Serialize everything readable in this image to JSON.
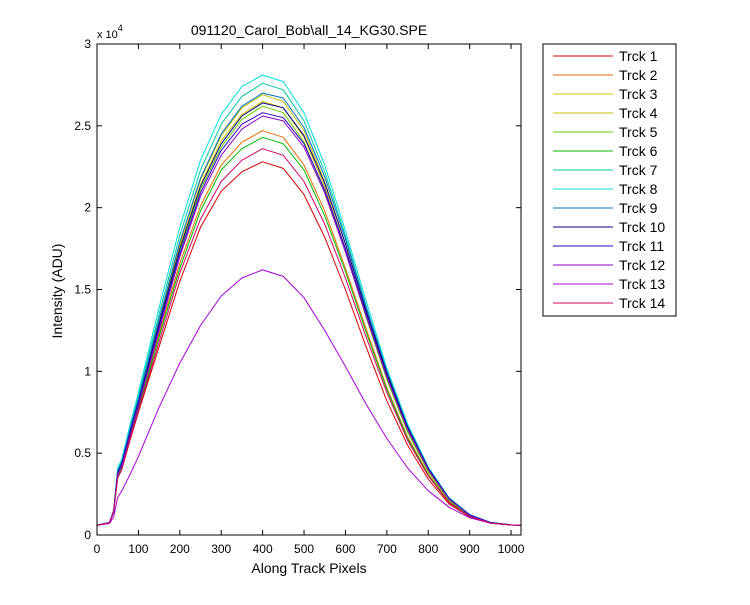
{
  "chart_data": {
    "type": "line",
    "title": "091120_Carol_Bob\\all_14_KG30.SPE",
    "xlabel": "Along Track Pixels",
    "ylabel": "Intensity (ADU)",
    "y_multiplier_label": "x 10",
    "y_multiplier_exponent": "4",
    "xlim": [
      0,
      1024
    ],
    "ylim": [
      0,
      30000
    ],
    "x_ticks": [
      0,
      100,
      200,
      300,
      400,
      500,
      600,
      700,
      800,
      900,
      1000
    ],
    "x_tick_labels": [
      "0",
      "100",
      "200",
      "300",
      "400",
      "500",
      "600",
      "700",
      "800",
      "900",
      "1000"
    ],
    "y_ticks": [
      0,
      5000,
      10000,
      15000,
      20000,
      25000,
      30000
    ],
    "y_tick_labels": [
      "0",
      "0.5",
      "1",
      "1.5",
      "2",
      "2.5",
      "3"
    ],
    "grid": false,
    "legend_position": "outside-top-right",
    "x": [
      0,
      30,
      40,
      50,
      60,
      80,
      100,
      150,
      200,
      250,
      300,
      350,
      400,
      450,
      500,
      550,
      600,
      650,
      700,
      750,
      800,
      850,
      900,
      950,
      1000,
      1024
    ],
    "series": [
      {
        "name": "Trck 1",
        "color": "#d40000",
        "values": [
          600,
          750,
          1400,
          3500,
          4000,
          5800,
          7500,
          11500,
          15500,
          18800,
          21000,
          22200,
          22800,
          22400,
          20800,
          18200,
          15000,
          11500,
          8200,
          5500,
          3400,
          1900,
          1100,
          720,
          610,
          600
        ]
      },
      {
        "name": "Trck 2",
        "color": "#e66a00",
        "values": [
          600,
          750,
          1400,
          3700,
          4200,
          6100,
          7800,
          12300,
          16600,
          20100,
          22600,
          24000,
          24700,
          24300,
          22600,
          19800,
          16300,
          12600,
          9000,
          6000,
          3700,
          2050,
          1150,
          740,
          610,
          600
        ]
      },
      {
        "name": "Trck 3",
        "color": "#d8c400",
        "values": [
          600,
          760,
          1450,
          3900,
          4400,
          6400,
          8200,
          13000,
          17600,
          21400,
          24100,
          25700,
          26500,
          26100,
          24300,
          21300,
          17500,
          13400,
          9600,
          6400,
          3900,
          2150,
          1200,
          750,
          610,
          600
        ]
      },
      {
        "name": "Trck 4",
        "color": "#c0c000",
        "values": [
          600,
          760,
          1450,
          3900,
          4450,
          6450,
          8300,
          13100,
          17800,
          21700,
          24400,
          26100,
          26900,
          26500,
          24700,
          21600,
          17800,
          13700,
          9800,
          6500,
          4000,
          2200,
          1220,
          760,
          615,
          600
        ]
      },
      {
        "name": "Trck 5",
        "color": "#66cc00",
        "values": [
          600,
          760,
          1450,
          3800,
          4300,
          6300,
          8100,
          12800,
          17400,
          21100,
          23700,
          25400,
          26200,
          25800,
          24000,
          21000,
          17300,
          13300,
          9500,
          6300,
          3850,
          2100,
          1180,
          745,
          610,
          600
        ]
      },
      {
        "name": "Trck 6",
        "color": "#00bb00",
        "values": [
          600,
          750,
          1420,
          3650,
          4150,
          6000,
          7700,
          12100,
          16300,
          19800,
          22300,
          23600,
          24300,
          23900,
          22300,
          19500,
          16100,
          12400,
          8900,
          5900,
          3650,
          2000,
          1130,
          730,
          610,
          600
        ]
      },
      {
        "name": "Trck 7",
        "color": "#00c9a0",
        "values": [
          600,
          770,
          1480,
          4000,
          4550,
          6600,
          8500,
          13500,
          18300,
          22300,
          25100,
          26800,
          27600,
          27200,
          25300,
          22200,
          18300,
          14000,
          10000,
          6700,
          4100,
          2250,
          1240,
          770,
          620,
          600
        ]
      },
      {
        "name": "Trck 8",
        "color": "#00dede",
        "values": [
          600,
          770,
          1500,
          4100,
          4650,
          6750,
          8700,
          13900,
          18800,
          22900,
          25700,
          27400,
          28100,
          27700,
          25800,
          22600,
          18600,
          14300,
          10200,
          6800,
          4150,
          2280,
          1250,
          775,
          620,
          600
        ]
      },
      {
        "name": "Trck 9",
        "color": "#0070c8",
        "values": [
          600,
          760,
          1460,
          3900,
          4450,
          6450,
          8300,
          13200,
          17900,
          21800,
          24500,
          26200,
          27000,
          26700,
          24900,
          21900,
          18100,
          13900,
          10000,
          6650,
          4100,
          2250,
          1230,
          765,
          615,
          600
        ]
      },
      {
        "name": "Trck 10",
        "color": "#00008b",
        "values": [
          600,
          755,
          1440,
          3800,
          4350,
          6300,
          8100,
          12900,
          17500,
          21300,
          23900,
          25600,
          26400,
          26100,
          24400,
          21500,
          17800,
          13700,
          9900,
          6600,
          4050,
          2220,
          1220,
          760,
          615,
          600
        ]
      },
      {
        "name": "Trck 11",
        "color": "#2a00c8",
        "values": [
          600,
          750,
          1430,
          3750,
          4300,
          6200,
          8000,
          12700,
          17200,
          20900,
          23500,
          25100,
          25800,
          25500,
          23900,
          21100,
          17500,
          13500,
          9700,
          6500,
          4000,
          2200,
          1210,
          755,
          612,
          600
        ]
      },
      {
        "name": "Trck 12",
        "color": "#8a00c8",
        "values": [
          600,
          750,
          1420,
          3700,
          4250,
          6150,
          7900,
          12500,
          17000,
          20700,
          23200,
          24800,
          25600,
          25300,
          23700,
          20900,
          17300,
          13400,
          9650,
          6450,
          3980,
          2190,
          1200,
          750,
          612,
          600
        ]
      },
      {
        "name": "Trck 13",
        "color": "#a400d8",
        "values": [
          600,
          700,
          1100,
          2300,
          2700,
          3700,
          4800,
          7800,
          10500,
          12800,
          14600,
          15700,
          16200,
          15800,
          14500,
          12500,
          10300,
          8000,
          5900,
          4100,
          2700,
          1700,
          1050,
          730,
          610,
          600
        ]
      },
      {
        "name": "Trck 14",
        "color": "#d00060",
        "values": [
          600,
          745,
          1400,
          3500,
          4000,
          5900,
          7600,
          11800,
          16000,
          19300,
          21600,
          22900,
          23600,
          23200,
          21600,
          19000,
          15700,
          12100,
          8700,
          5800,
          3600,
          1980,
          1120,
          725,
          608,
          600
        ]
      }
    ]
  }
}
